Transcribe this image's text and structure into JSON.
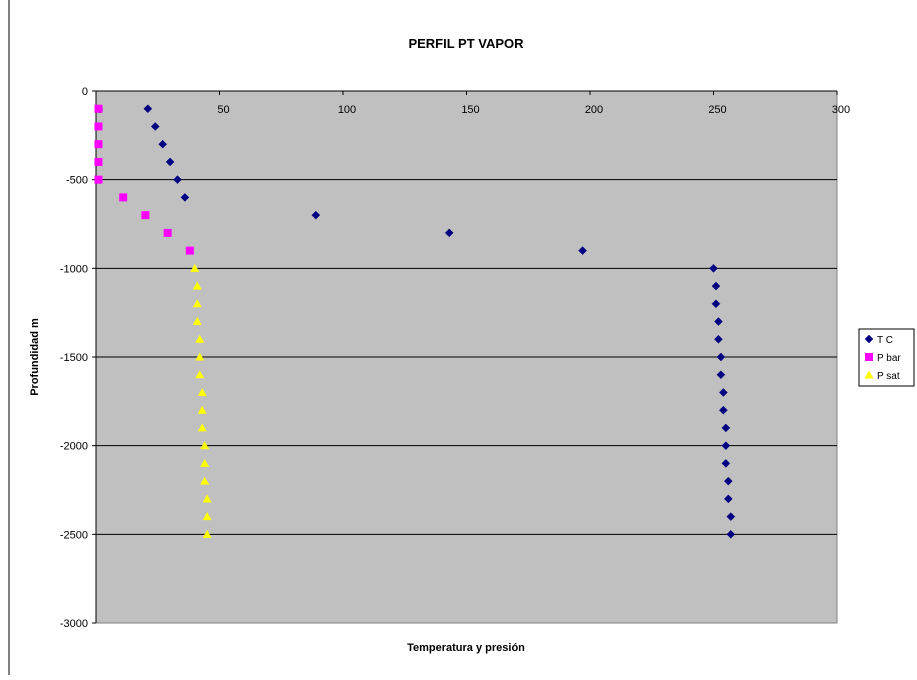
{
  "colors": {
    "plot_bg": "#c0c0c0",
    "gridline": "#000000",
    "t_c": "#000080",
    "p_bar": "#ff00ff",
    "p_sat": "#ffff00",
    "frame": "#000000"
  },
  "chart_data": {
    "type": "scatter",
    "title": "PERFIL PT VAPOR",
    "xlabel": "Temperatura y presión",
    "ylabel": "Profundidad m",
    "xlim": [
      0,
      300
    ],
    "ylim": [
      -3000,
      0
    ],
    "x_ticks": [
      0,
      50,
      100,
      150,
      200,
      250,
      300
    ],
    "x_tick_labels": [
      "0",
      "50",
      "100",
      "150",
      "200",
      "250",
      "300"
    ],
    "y_ticks": [
      0,
      -500,
      -1000,
      -1500,
      -2000,
      -2500,
      -3000
    ],
    "y_tick_labels": [
      "0",
      "-500",
      "-1000",
      "-1500",
      "-2000",
      "-2500",
      "-3000"
    ],
    "grid": "horizontal major",
    "legend_position": "right",
    "series": [
      {
        "name": "T C",
        "marker": "diamond",
        "color": "#000080",
        "points": [
          [
            21,
            -100
          ],
          [
            24,
            -200
          ],
          [
            27,
            -300
          ],
          [
            30,
            -400
          ],
          [
            33,
            -500
          ],
          [
            36,
            -600
          ],
          [
            89,
            -700
          ],
          [
            143,
            -800
          ],
          [
            197,
            -900
          ],
          [
            250,
            -1000
          ],
          [
            251,
            -1100
          ],
          [
            251,
            -1200
          ],
          [
            252,
            -1300
          ],
          [
            252,
            -1400
          ],
          [
            253,
            -1500
          ],
          [
            253,
            -1600
          ],
          [
            254,
            -1700
          ],
          [
            254,
            -1800
          ],
          [
            255,
            -1900
          ],
          [
            255,
            -2000
          ],
          [
            255,
            -2100
          ],
          [
            256,
            -2200
          ],
          [
            256,
            -2300
          ],
          [
            257,
            -2400
          ],
          [
            257,
            -2500
          ]
        ]
      },
      {
        "name": "P bar",
        "marker": "square",
        "color": "#ff00ff",
        "points": [
          [
            1,
            -100
          ],
          [
            1,
            -200
          ],
          [
            1,
            -300
          ],
          [
            1,
            -400
          ],
          [
            1,
            -500
          ],
          [
            11,
            -600
          ],
          [
            20,
            -700
          ],
          [
            29,
            -800
          ],
          [
            38,
            -900
          ]
        ]
      },
      {
        "name": "P sat",
        "marker": "triangle",
        "color": "#ffff00",
        "points": [
          [
            40,
            -1000
          ],
          [
            41,
            -1100
          ],
          [
            41,
            -1200
          ],
          [
            41,
            -1300
          ],
          [
            42,
            -1400
          ],
          [
            42,
            -1500
          ],
          [
            42,
            -1600
          ],
          [
            43,
            -1700
          ],
          [
            43,
            -1800
          ],
          [
            43,
            -1900
          ],
          [
            44,
            -2000
          ],
          [
            44,
            -2100
          ],
          [
            44,
            -2200
          ],
          [
            45,
            -2300
          ],
          [
            45,
            -2400
          ],
          [
            45,
            -2500
          ]
        ]
      }
    ]
  }
}
